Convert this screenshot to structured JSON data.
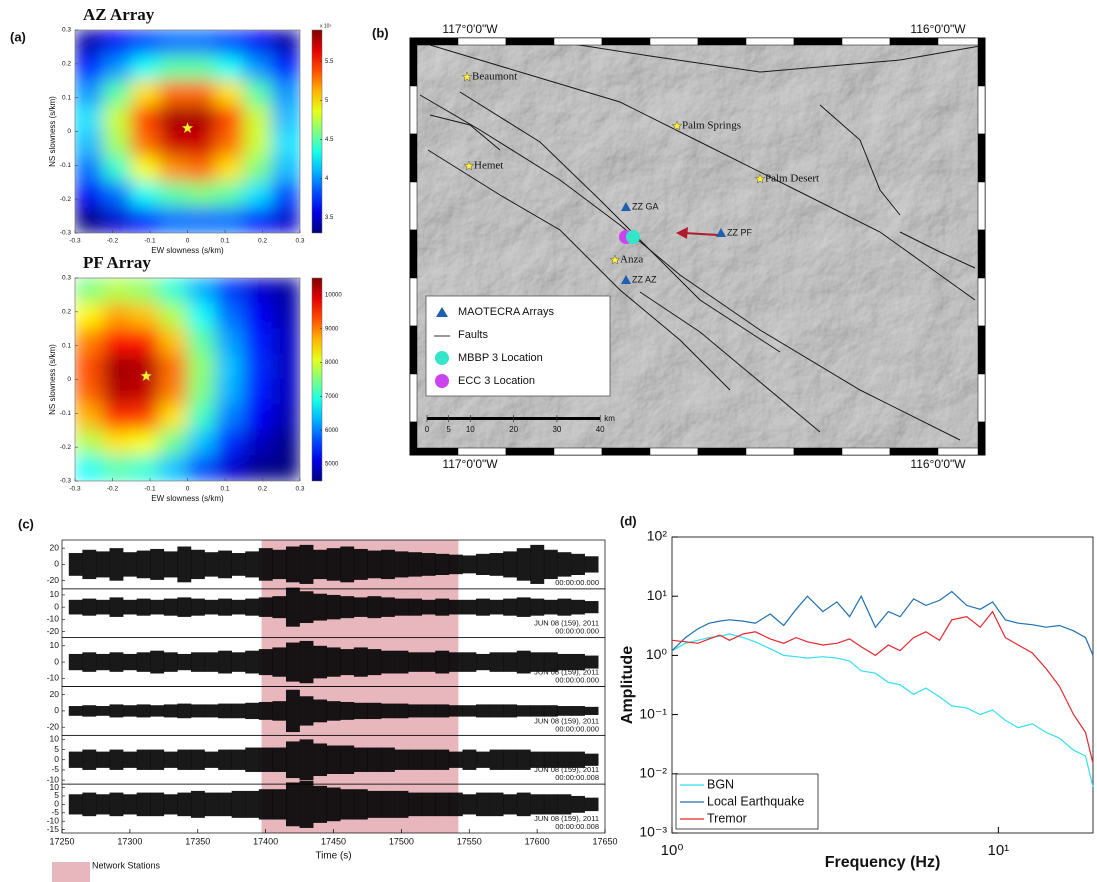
{
  "panels": [
    "(a)",
    "(b)",
    "(c)",
    "(d)"
  ],
  "chart_data": [
    {
      "type": "heatmap",
      "title": "AZ Array",
      "xlabel": "EW slowness (s/km)",
      "ylabel": "NS slowness (s/km)",
      "x": [
        -0.2625,
        -0.1875,
        -0.1125,
        -0.0375,
        0.0375,
        0.1125,
        0.1875,
        0.2625
      ],
      "y": [
        0.2625,
        0.1875,
        0.1125,
        0.0375,
        -0.0375,
        -0.1125,
        -0.1875,
        -0.2625
      ],
      "z": [
        [
          3.4,
          3.6,
          3.8,
          3.9,
          3.9,
          3.8,
          3.6,
          3.4
        ],
        [
          3.7,
          4.0,
          4.3,
          4.5,
          4.5,
          4.3,
          4.0,
          3.7
        ],
        [
          4.0,
          4.5,
          5.0,
          5.3,
          5.3,
          5.0,
          4.5,
          4.0
        ],
        [
          4.2,
          4.8,
          5.4,
          5.8,
          5.8,
          5.4,
          4.8,
          4.1
        ],
        [
          4.1,
          4.7,
          5.3,
          5.7,
          5.7,
          5.3,
          4.8,
          4.2
        ],
        [
          3.9,
          4.4,
          4.9,
          5.2,
          5.3,
          5.0,
          4.6,
          4.1
        ],
        [
          3.6,
          3.9,
          4.3,
          4.5,
          4.6,
          4.5,
          4.2,
          3.8
        ],
        [
          3.3,
          3.5,
          3.7,
          3.9,
          3.9,
          3.9,
          3.7,
          3.5
        ]
      ],
      "xlim": [
        -0.3,
        0.3
      ],
      "ylim": [
        -0.3,
        0.3
      ],
      "xticks": [
        -0.3,
        -0.2,
        -0.1,
        0,
        0.1,
        0.2,
        0.3
      ],
      "yticks": [
        -0.3,
        -0.2,
        -0.1,
        0,
        0.1,
        0.2,
        0.3
      ],
      "clim": [
        3.3,
        5.9
      ],
      "cticks": [
        3.5,
        4,
        4.5,
        5,
        5.5
      ],
      "cbar_label": "x 10⁵",
      "marker": {
        "x": 0,
        "y": 0.01,
        "color": "#ffee33"
      }
    },
    {
      "type": "heatmap",
      "title": "PF Array",
      "xlabel": "EW slowness (s/km)",
      "ylabel": "NS slowness (s/km)",
      "x": [
        -0.2625,
        -0.1875,
        -0.1125,
        -0.0375,
        0.0375,
        0.1125,
        0.1875,
        0.2625
      ],
      "y": [
        0.2625,
        0.1875,
        0.1125,
        0.0375,
        -0.0375,
        -0.1125,
        -0.1875,
        -0.2625
      ],
      "z": [
        [
          7500,
          7800,
          7600,
          7000,
          6300,
          5600,
          5000,
          4700
        ],
        [
          8300,
          8800,
          8600,
          7800,
          6800,
          5900,
          5200,
          4800
        ],
        [
          9000,
          9700,
          9600,
          8600,
          7300,
          6200,
          5400,
          4900
        ],
        [
          9300,
          10300,
          10200,
          9100,
          7600,
          6400,
          5500,
          4900
        ],
        [
          9200,
          10200,
          10100,
          9000,
          7500,
          6300,
          5400,
          4900
        ],
        [
          8700,
          9500,
          9400,
          8400,
          7100,
          6000,
          5200,
          4800
        ],
        [
          7800,
          8400,
          8200,
          7400,
          6400,
          5500,
          4900,
          4600
        ],
        [
          6800,
          7200,
          7000,
          6400,
          5700,
          5000,
          4600,
          4500
        ]
      ],
      "xlim": [
        -0.3,
        0.3
      ],
      "ylim": [
        -0.3,
        0.3
      ],
      "xticks": [
        -0.3,
        -0.2,
        -0.1,
        0,
        0.1,
        0.2,
        0.3
      ],
      "yticks": [
        -0.3,
        -0.2,
        -0.1,
        0,
        0.1,
        0.2,
        0.3
      ],
      "clim": [
        4500,
        10500
      ],
      "cticks": [
        5000,
        6000,
        7000,
        8000,
        9000,
        10000
      ],
      "marker": {
        "x": -0.11,
        "y": 0.01,
        "color": "#ffee33"
      }
    },
    {
      "type": "waveform",
      "xlabel": "Time (s)",
      "color": "#000000",
      "xlim": [
        17250,
        17650
      ],
      "xticks": [
        17250,
        17300,
        17350,
        17400,
        17450,
        17500,
        17550,
        17600,
        17650
      ],
      "x": [
        17260,
        17270,
        17280,
        17290,
        17300,
        17310,
        17320,
        17330,
        17340,
        17350,
        17360,
        17370,
        17380,
        17390,
        17400,
        17410,
        17420,
        17430,
        17440,
        17450,
        17460,
        17470,
        17480,
        17490,
        17500,
        17510,
        17520,
        17530,
        17540,
        17550,
        17560,
        17570,
        17580,
        17590,
        17600,
        17610,
        17620,
        17630,
        17640
      ],
      "highlight": {
        "range": [
          17397,
          17542
        ],
        "color": "#e8b7bd",
        "label": "Network Stations"
      },
      "series": [
        {
          "ylim": [
            -30,
            30
          ],
          "yticks": [
            -20,
            0,
            20
          ],
          "notes": [
            "00:00:00.000"
          ],
          "values": [
            14,
            18,
            16,
            20,
            15,
            17,
            19,
            16,
            22,
            18,
            15,
            17,
            14,
            16,
            20,
            18,
            22,
            24,
            18,
            20,
            22,
            19,
            17,
            18,
            16,
            15,
            14,
            13,
            12,
            11,
            13,
            14,
            16,
            20,
            24,
            18,
            15,
            13,
            10
          ]
        },
        {
          "ylim": [
            -25,
            15
          ],
          "yticks": [
            -20,
            -10,
            0,
            10
          ],
          "notes": [
            "JUN 08 (159), 2011",
            "00:00:00.000"
          ],
          "values": [
            6,
            7,
            6,
            8,
            6,
            7,
            6,
            7,
            8,
            7,
            6,
            7,
            6,
            7,
            8,
            9,
            16,
            13,
            11,
            10,
            9,
            8,
            9,
            8,
            7,
            7,
            6,
            7,
            6,
            6,
            7,
            6,
            7,
            8,
            7,
            6,
            7,
            6,
            5
          ]
        },
        {
          "ylim": [
            -15,
            15
          ],
          "yticks": [
            -10,
            0,
            10
          ],
          "notes": [
            "JUN 08 (159), 2011",
            "00:00:00.000"
          ],
          "values": [
            5,
            6,
            5,
            6,
            5,
            6,
            7,
            6,
            5,
            6,
            6,
            7,
            6,
            7,
            8,
            9,
            12,
            13,
            10,
            9,
            8,
            9,
            8,
            7,
            7,
            6,
            6,
            7,
            6,
            6,
            5,
            6,
            6,
            7,
            6,
            6,
            5,
            5,
            4
          ]
        },
        {
          "ylim": [
            -30,
            30
          ],
          "yticks": [
            -20,
            0,
            20
          ],
          "notes": [
            "JUN 08 (159), 2011",
            "00:00:00.000"
          ],
          "values": [
            6,
            7,
            6,
            8,
            7,
            8,
            7,
            8,
            9,
            8,
            8,
            9,
            9,
            10,
            11,
            12,
            26,
            18,
            14,
            12,
            11,
            10,
            10,
            9,
            9,
            8,
            8,
            8,
            7,
            7,
            8,
            8,
            8,
            7,
            7,
            7,
            6,
            6,
            5
          ]
        },
        {
          "ylim": [
            -12,
            12
          ],
          "yticks": [
            -10,
            -5,
            0,
            5,
            10
          ],
          "notes": [
            "JUN 08 (159), 2011",
            "00:00:00.008"
          ],
          "values": [
            4,
            5,
            4,
            5,
            4,
            5,
            5,
            4,
            5,
            5,
            4,
            5,
            5,
            6,
            6,
            6,
            9,
            10,
            8,
            7,
            7,
            6,
            6,
            6,
            5,
            5,
            5,
            5,
            4,
            5,
            4,
            5,
            5,
            5,
            4,
            4,
            4,
            4,
            3
          ]
        },
        {
          "ylim": [
            -17,
            12
          ],
          "yticks": [
            -15,
            -10,
            -5,
            0,
            5,
            10
          ],
          "notes": [
            "JUN 08 (159), 2011",
            "00:00:00.008"
          ],
          "values": [
            6,
            7,
            6,
            7,
            6,
            7,
            7,
            6,
            7,
            8,
            7,
            7,
            8,
            8,
            9,
            9,
            13,
            14,
            11,
            10,
            9,
            9,
            8,
            8,
            8,
            7,
            7,
            7,
            7,
            6,
            7,
            7,
            6,
            7,
            6,
            6,
            6,
            5,
            4
          ]
        }
      ]
    },
    {
      "type": "line",
      "xlabel": "Frequency (Hz)",
      "ylabel": "Amplitude",
      "log_x": true,
      "log_y": true,
      "legend": "bottom-left",
      "xlim": [
        1,
        19.5
      ],
      "ylim": [
        0.001,
        100
      ],
      "xticks": [
        {
          "value": 1,
          "label": "10⁰"
        },
        {
          "value": 10,
          "label": "10¹"
        }
      ],
      "yticks": [
        {
          "value": 0.001,
          "label": "10⁻³"
        },
        {
          "value": 0.01,
          "label": "10⁻²"
        },
        {
          "value": 0.1,
          "label": "10⁻¹"
        },
        {
          "value": 1,
          "label": "10⁰"
        },
        {
          "value": 10,
          "label": "10¹"
        },
        {
          "value": 100,
          "label": "10²"
        }
      ],
      "x": [
        1,
        1.1,
        1.2,
        1.3,
        1.4,
        1.5,
        1.65,
        1.8,
        2,
        2.2,
        2.4,
        2.6,
        2.9,
        3.2,
        3.5,
        3.8,
        4.2,
        4.6,
        5,
        5.5,
        6,
        6.6,
        7.2,
        8,
        8.8,
        9.6,
        10.5,
        11.5,
        12.7,
        14,
        15.4,
        17,
        18.5,
        19.5
      ],
      "series": [
        {
          "name": "BGN",
          "color": "#33dff0",
          "values": [
            1.2,
            1.6,
            1.8,
            2.0,
            2.1,
            2.3,
            2.0,
            1.7,
            1.3,
            1.0,
            0.95,
            0.9,
            0.95,
            0.9,
            0.8,
            0.55,
            0.5,
            0.35,
            0.32,
            0.22,
            0.28,
            0.2,
            0.14,
            0.13,
            0.1,
            0.12,
            0.08,
            0.06,
            0.07,
            0.05,
            0.04,
            0.025,
            0.02,
            0.006
          ]
        },
        {
          "name": "Local Earthquake",
          "color": "#1f6fb0",
          "values": [
            1.2,
            2.0,
            2.8,
            3.5,
            3.8,
            4.0,
            3.8,
            3.5,
            5.0,
            3.2,
            6.0,
            10,
            5.5,
            8,
            4.5,
            10,
            3.0,
            5.5,
            4.5,
            9,
            7,
            8.5,
            12,
            7,
            6,
            8,
            4,
            3.5,
            3.3,
            3,
            3.2,
            2.6,
            2.0,
            1.0
          ]
        },
        {
          "name": "Tremor",
          "color": "#e8262e",
          "values": [
            1.8,
            1.7,
            1.6,
            1.9,
            2.2,
            1.8,
            2.3,
            2.5,
            1.9,
            1.6,
            2.0,
            1.7,
            1.5,
            1.6,
            1.9,
            1.4,
            1.0,
            1.5,
            1.2,
            2.0,
            2.5,
            1.8,
            4,
            4.5,
            3,
            5.5,
            2,
            1.5,
            1.1,
            0.6,
            0.3,
            0.1,
            0.05,
            0.015
          ]
        }
      ]
    }
  ],
  "map": {
    "corner_labels": [
      "117°0'0\"W",
      "116°0'0\"W",
      "117°0'0\"W",
      "116°0'0\"W"
    ],
    "places": [
      "Beaumont",
      "Palm Springs",
      "Hemet",
      "Palm Desert",
      "Anza"
    ],
    "stations": [
      "ZZ GA",
      "ZZ PF",
      "ZZ AZ"
    ],
    "legend": [
      "MAOTECRA Arrays",
      "Faults",
      "MBBP 3 Location",
      "ECC 3 Location"
    ],
    "scale": {
      "unit": "km",
      "ticks": [
        0,
        5,
        10,
        20,
        30,
        40
      ]
    }
  }
}
